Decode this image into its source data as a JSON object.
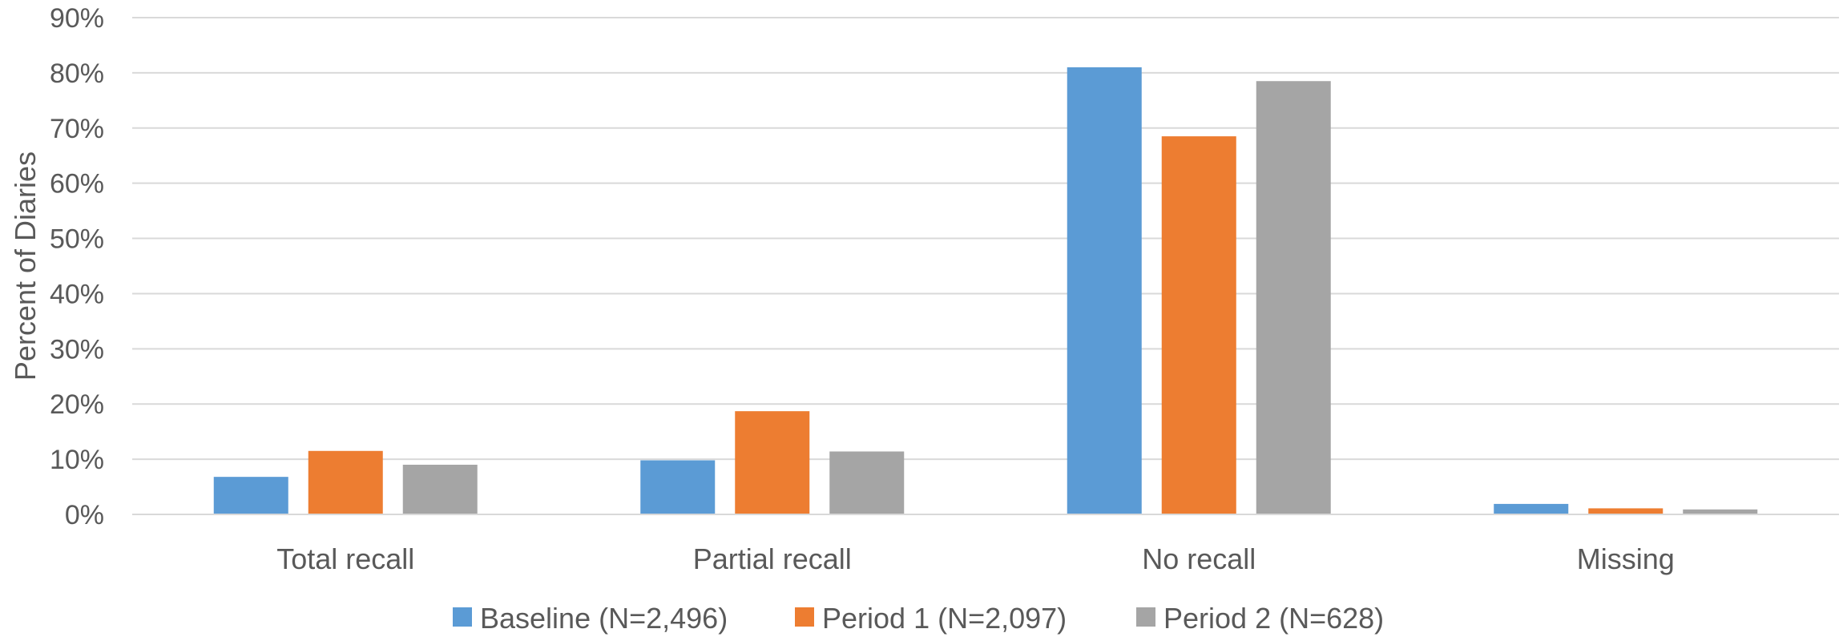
{
  "chart_data": {
    "type": "bar",
    "title": "",
    "xlabel": "",
    "ylabel": "Percent of Diaries",
    "ylim": [
      0,
      90
    ],
    "ytick_step": 10,
    "yticks": [
      "0%",
      "10%",
      "20%",
      "30%",
      "40%",
      "50%",
      "60%",
      "70%",
      "80%",
      "90%"
    ],
    "grid": true,
    "legend_position": "bottom",
    "categories": [
      "Total recall",
      "Partial recall",
      "No recall",
      "Missing"
    ],
    "series": [
      {
        "name": "Baseline (N=2,496)",
        "color": "#5B9BD5",
        "values": [
          6.8,
          9.8,
          81.0,
          1.9
        ]
      },
      {
        "name": "Period 1 (N=2,097)",
        "color": "#ED7D31",
        "values": [
          11.5,
          18.7,
          68.5,
          1.1
        ]
      },
      {
        "name": "Period 2 (N=628)",
        "color": "#A5A5A5",
        "values": [
          9.0,
          11.4,
          78.5,
          0.9
        ]
      }
    ]
  }
}
